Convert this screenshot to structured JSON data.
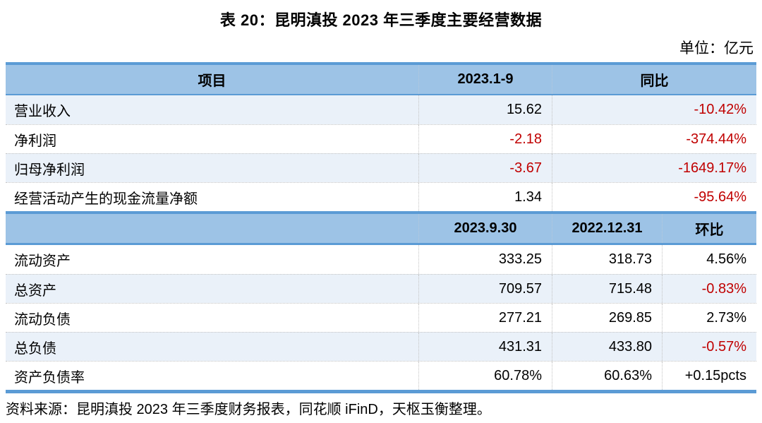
{
  "title": "表 20：昆明滇投 2023 年三季度主要经营数据",
  "unit_label": "单位：亿元",
  "colors": {
    "header_bg": "#9DC3E6",
    "border_blue": "#5B9BD5",
    "row_alt_bg": "#EAF1F9",
    "negative_red": "#C00000"
  },
  "table": {
    "section1": {
      "headers": {
        "item": "项目",
        "period": "2023.1-9",
        "yoy": "同比"
      },
      "rows": [
        {
          "item": "营业收入",
          "value": "15.62",
          "yoy": "-10.42%"
        },
        {
          "item": "净利润",
          "value": "-2.18",
          "yoy": "-374.44%"
        },
        {
          "item": "归母净利润",
          "value": "-3.67",
          "yoy": "-1649.17%"
        },
        {
          "item": "经营活动产生的现金流量净额",
          "value": "1.34",
          "yoy": "-95.64%"
        }
      ]
    },
    "section2": {
      "headers": {
        "item": "",
        "date1": "2023.9.30",
        "date2": "2022.12.31",
        "qoq": "环比"
      },
      "rows": [
        {
          "item": "流动资产",
          "v1": "333.25",
          "v2": "318.73",
          "qoq": "4.56%"
        },
        {
          "item": "总资产",
          "v1": "709.57",
          "v2": "715.48",
          "qoq": "-0.83%"
        },
        {
          "item": "流动负债",
          "v1": "277.21",
          "v2": "269.85",
          "qoq": "2.73%"
        },
        {
          "item": "总负债",
          "v1": "431.31",
          "v2": "433.80",
          "qoq": "-0.57%"
        },
        {
          "item": "资产负债率",
          "v1": "60.78%",
          "v2": "60.63%",
          "qoq": "+0.15pcts"
        }
      ]
    }
  },
  "source": "资料来源：昆明滇投 2023 年三季度财务报表，同花顺 iFinD，天枢玉衡整理。"
}
